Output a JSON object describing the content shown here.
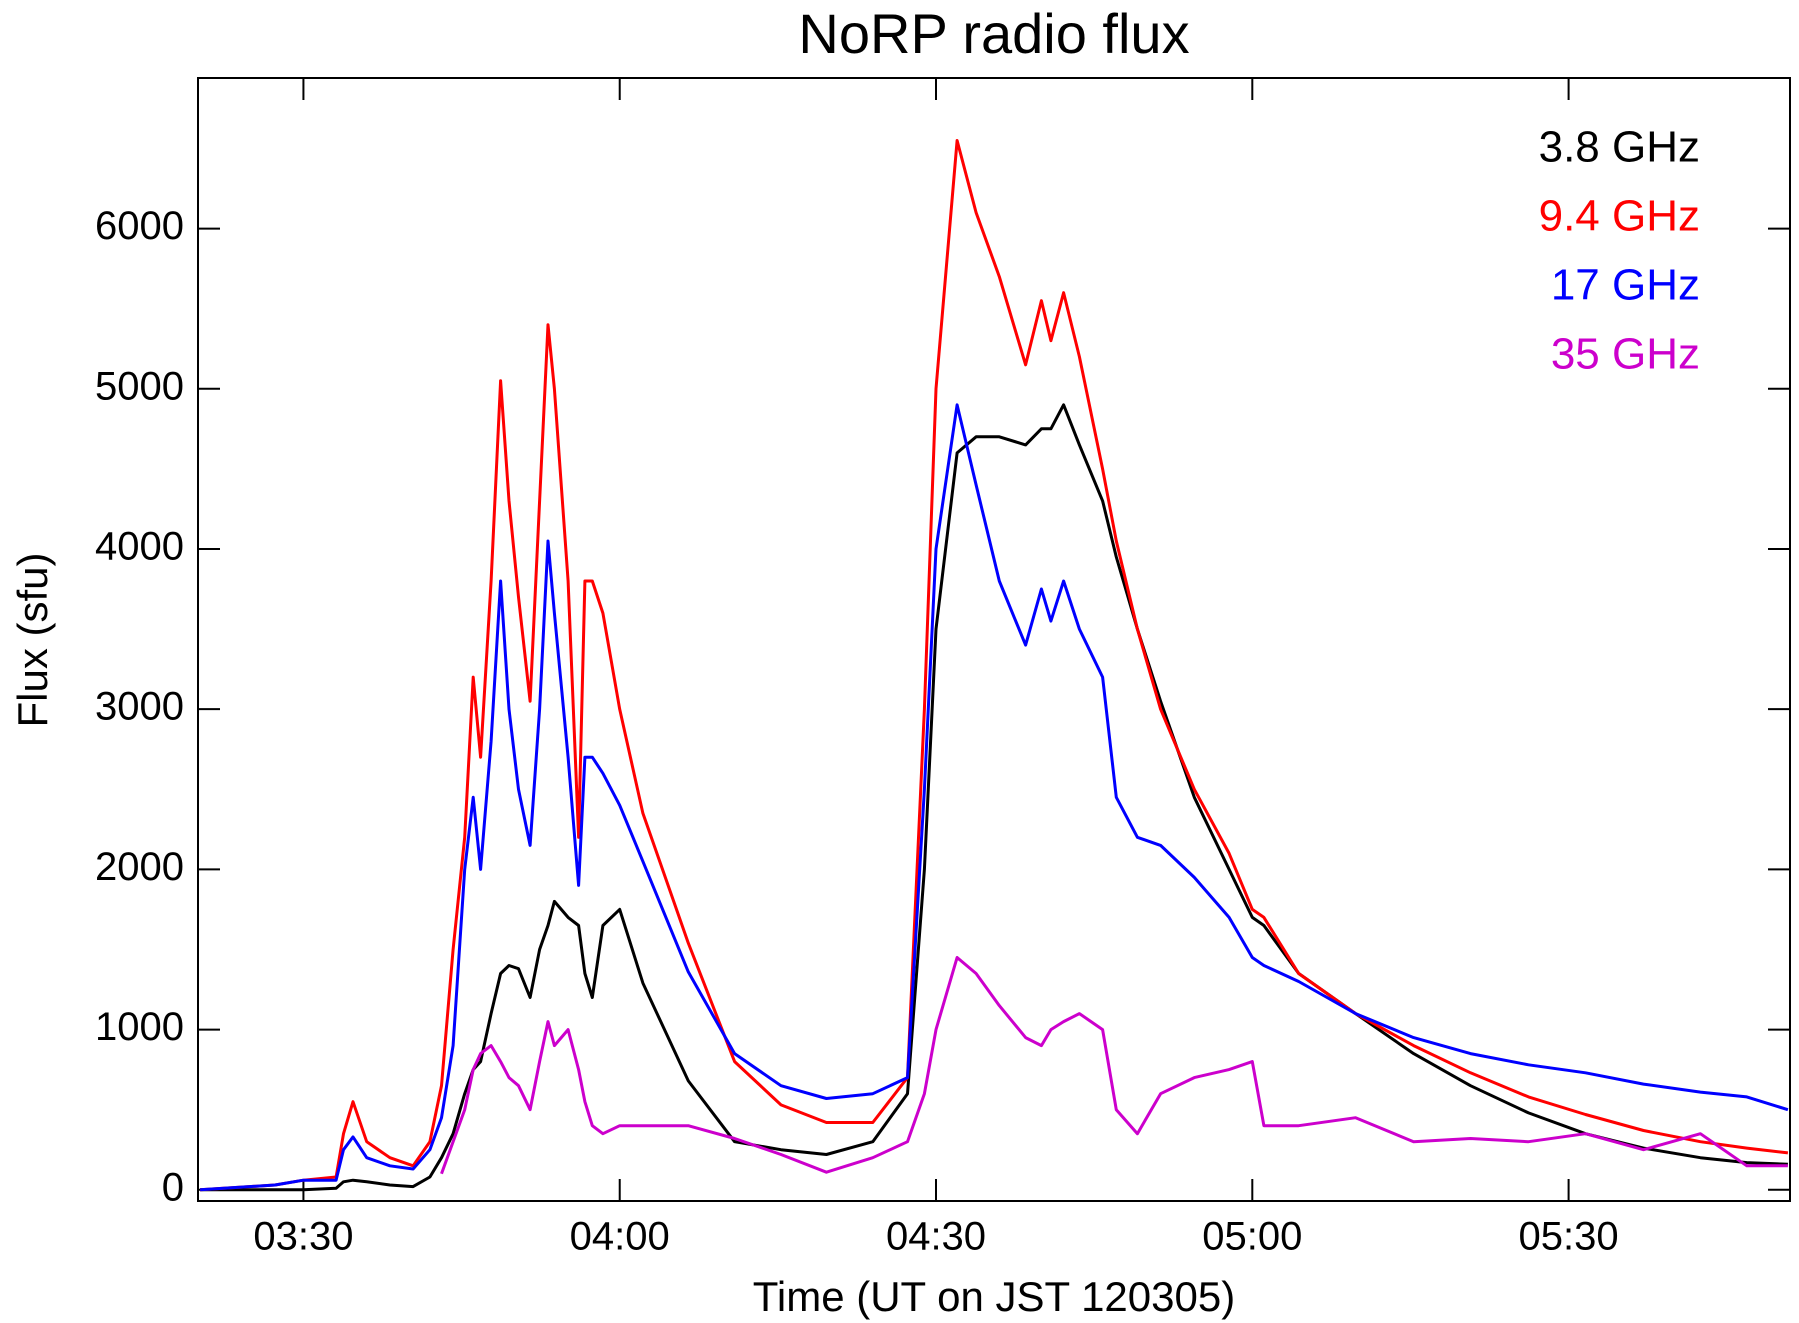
{
  "chart_data": {
    "type": "line",
    "title": "NoRP radio flux",
    "x_label": "Time (UT on JST 120305)",
    "y_label": "Flux (sfu)",
    "x": [
      200.2,
      207.3,
      210,
      213.1,
      213.8,
      214.7,
      216,
      218.2,
      220.4,
      222,
      223.1,
      224.2,
      225.3,
      226.1,
      226.8,
      227.8,
      228.7,
      229.5,
      230.4,
      231.5,
      232.4,
      233.2,
      233.8,
      235.1,
      236.1,
      236.7,
      237.4,
      238.4,
      240,
      242.2,
      246.5,
      250.9,
      255.3,
      259.6,
      264,
      267.3,
      268.9,
      270,
      272,
      273.8,
      276,
      278.5,
      280,
      280.9,
      282.1,
      283.6,
      285.8,
      287.1,
      289.1,
      291.3,
      294.5,
      297.8,
      300,
      301.1,
      304.4,
      309.8,
      315.3,
      320.7,
      326.2,
      331.6,
      337.1,
      342.5,
      346.9,
      350.8
    ],
    "series": [
      {
        "name": "3.8 GHz",
        "color": "#000000",
        "values": [
          0,
          0,
          0,
          10,
          50,
          60,
          50,
          30,
          20,
          80,
          200,
          350,
          600,
          750,
          800,
          1100,
          1350,
          1400,
          1380,
          1200,
          1500,
          1650,
          1800,
          1700,
          1650,
          1350,
          1200,
          1650,
          1750,
          1290,
          680,
          300,
          250,
          220,
          300,
          600,
          2000,
          3500,
          4600,
          4700,
          4700,
          4650,
          4750,
          4750,
          4900,
          4650,
          4300,
          3950,
          3500,
          3050,
          2450,
          2000,
          1700,
          1650,
          1350,
          1100,
          850,
          650,
          480,
          350,
          260,
          200,
          170,
          160
        ]
      },
      {
        "name": "9.4 GHz",
        "color": "#ff0000",
        "values": [
          0,
          30,
          60,
          80,
          350,
          550,
          300,
          200,
          150,
          300,
          650,
          1500,
          2200,
          3200,
          2700,
          3800,
          5050,
          4300,
          3700,
          3050,
          4300,
          5400,
          5000,
          3800,
          2200,
          3800,
          3800,
          3600,
          3000,
          2350,
          1540,
          800,
          530,
          420,
          420,
          700,
          3000,
          5000,
          6550,
          6100,
          5700,
          5150,
          5550,
          5300,
          5600,
          5200,
          4500,
          4050,
          3500,
          3000,
          2500,
          2100,
          1750,
          1700,
          1350,
          1100,
          900,
          730,
          580,
          470,
          370,
          300,
          260,
          230
        ]
      },
      {
        "name": "17 GHz",
        "color": "#0000ff",
        "values": [
          0,
          30,
          60,
          60,
          250,
          330,
          200,
          150,
          130,
          250,
          450,
          900,
          2000,
          2450,
          2000,
          2800,
          3800,
          3000,
          2500,
          2150,
          3000,
          4050,
          3600,
          2700,
          1900,
          2700,
          2700,
          2600,
          2400,
          2050,
          1360,
          850,
          650,
          570,
          600,
          700,
          2500,
          4000,
          4900,
          4400,
          3800,
          3400,
          3750,
          3550,
          3800,
          3500,
          3200,
          2450,
          2200,
          2150,
          1950,
          1700,
          1450,
          1400,
          1300,
          1100,
          950,
          850,
          780,
          730,
          660,
          610,
          580,
          500
        ]
      },
      {
        "name": "35 GHz",
        "color": "#cc00cc",
        "values": [
          null,
          null,
          null,
          null,
          null,
          null,
          null,
          null,
          null,
          null,
          100,
          300,
          500,
          750,
          850,
          900,
          800,
          700,
          650,
          500,
          800,
          1050,
          900,
          1000,
          750,
          550,
          400,
          350,
          400,
          400,
          400,
          320,
          220,
          110,
          200,
          300,
          600,
          1000,
          1450,
          1350,
          1150,
          950,
          900,
          1000,
          1050,
          1100,
          1000,
          500,
          350,
          600,
          700,
          750,
          800,
          400,
          400,
          450,
          300,
          320,
          300,
          350,
          250,
          350,
          150,
          150
        ]
      }
    ],
    "xlim": [
      200,
      351
    ],
    "xticks": [
      {
        "value": 210,
        "label": "03:30"
      },
      {
        "value": 240,
        "label": "04:00"
      },
      {
        "value": 270,
        "label": "04:30"
      },
      {
        "value": 300,
        "label": "05:00"
      },
      {
        "value": 330,
        "label": "05:30"
      }
    ],
    "ylim": [
      -70,
      6940
    ],
    "yticks": [
      0,
      1000,
      2000,
      3000,
      4000,
      5000,
      6000
    ],
    "grid": false,
    "legend": "upper right"
  }
}
